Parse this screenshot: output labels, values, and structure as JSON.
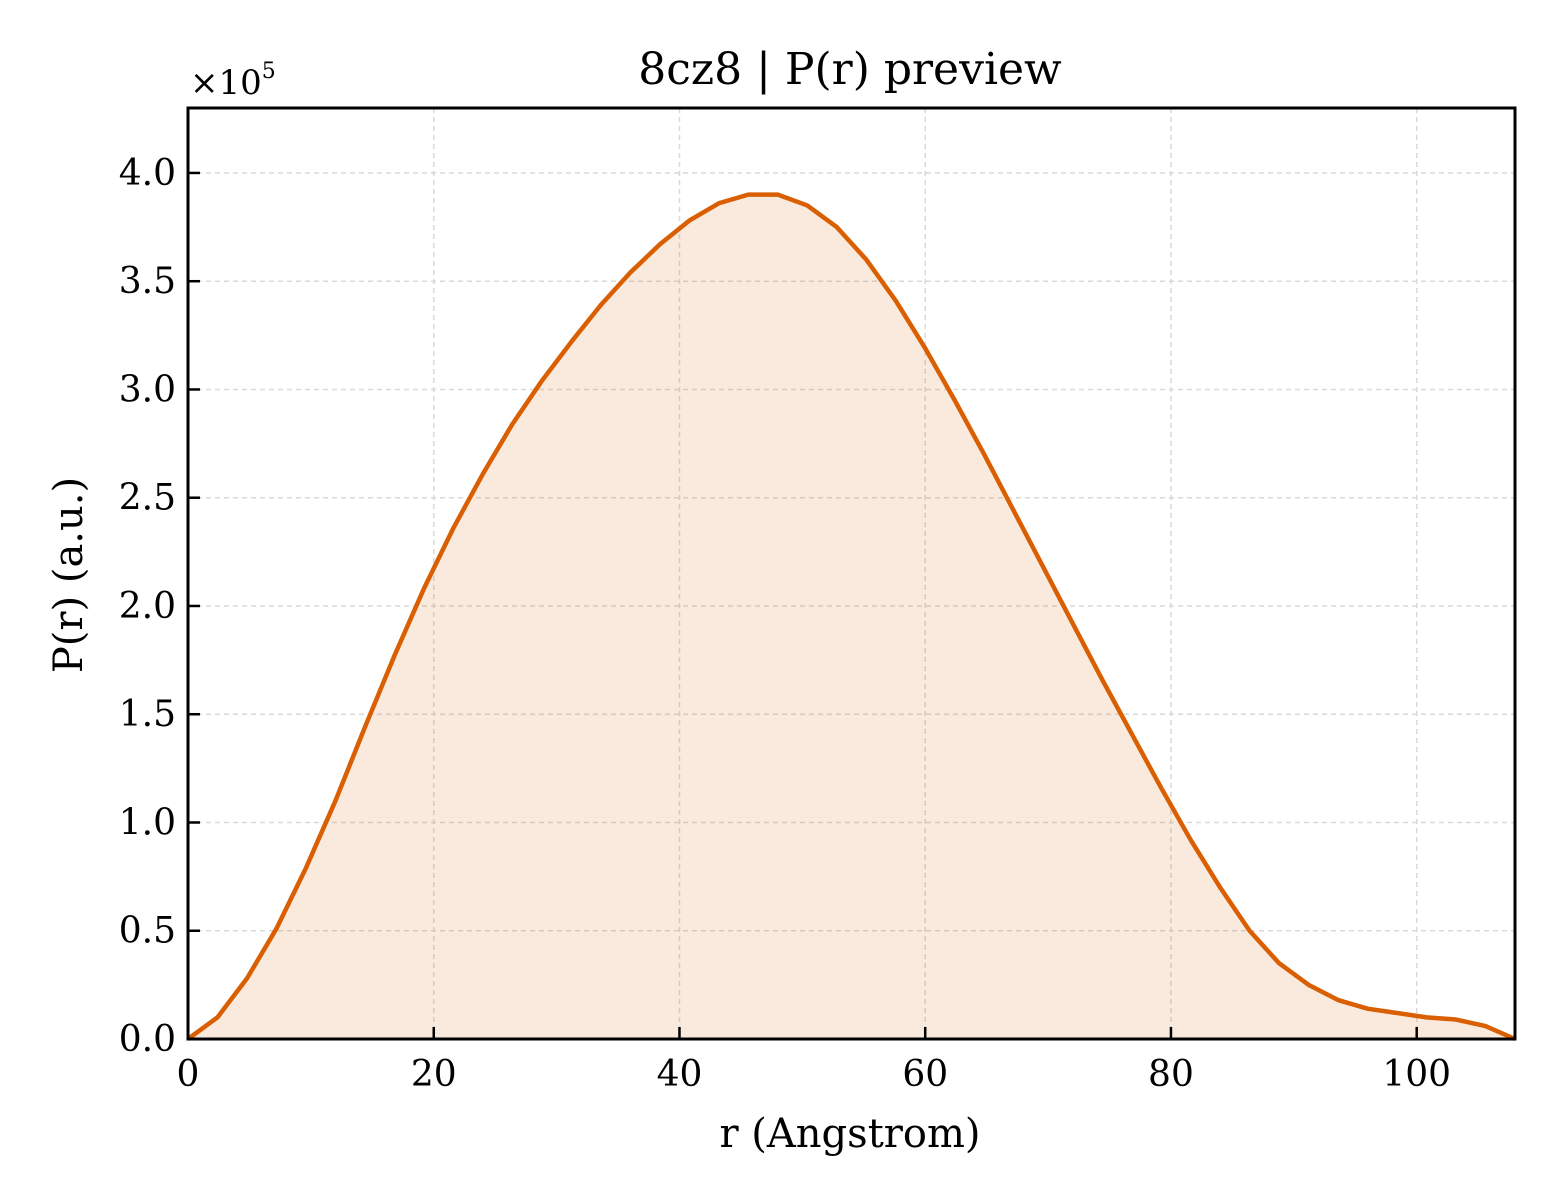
{
  "chart_data": {
    "type": "area",
    "title": "8cz8 | P(r) preview",
    "xlabel": "r (Angstrom)",
    "ylabel": "P(r) (a.u.)",
    "y_multiplier": {
      "prefix": "×10",
      "exponent": "5"
    },
    "xlim": [
      0,
      108
    ],
    "ylim": [
      0,
      4.3
    ],
    "y_unit_scale": 100000,
    "xticks": [
      0,
      20,
      40,
      60,
      80,
      100
    ],
    "xtick_labels": [
      "0",
      "20",
      "40",
      "60",
      "80",
      "100"
    ],
    "yticks": [
      0,
      0.5,
      1.0,
      1.5,
      2.0,
      2.5,
      3.0,
      3.5,
      4.0
    ],
    "ytick_labels": [
      "0.0",
      "0.5",
      "1.0",
      "1.5",
      "2.0",
      "2.5",
      "3.0",
      "3.5",
      "4.0"
    ],
    "grid": true,
    "series": [
      {
        "line_color": "#d95f02",
        "fill_color": "#d95f02",
        "fill_opacity": 0.13,
        "x": [
          0.0,
          2.4,
          4.8,
          7.2,
          9.6,
          12.0,
          14.4,
          16.8,
          19.2,
          21.6,
          24.0,
          26.4,
          28.8,
          31.2,
          33.6,
          36.0,
          38.4,
          40.8,
          43.2,
          45.6,
          48.0,
          50.4,
          52.8,
          55.2,
          57.6,
          60.0,
          62.4,
          64.8,
          67.2,
          69.6,
          72.0,
          74.4,
          76.8,
          79.2,
          81.6,
          84.0,
          86.4,
          88.8,
          91.2,
          93.6,
          96.0,
          98.4,
          100.8,
          103.2,
          105.6,
          108.0
        ],
        "y": [
          0.0,
          0.1,
          0.28,
          0.51,
          0.79,
          1.1,
          1.44,
          1.77,
          2.08,
          2.36,
          2.61,
          2.84,
          3.04,
          3.22,
          3.39,
          3.54,
          3.67,
          3.78,
          3.86,
          3.9,
          3.9,
          3.85,
          3.75,
          3.6,
          3.41,
          3.19,
          2.95,
          2.7,
          2.44,
          2.18,
          1.92,
          1.66,
          1.41,
          1.16,
          0.92,
          0.7,
          0.5,
          0.35,
          0.25,
          0.18,
          0.14,
          0.12,
          0.1,
          0.09,
          0.06,
          0.0
        ]
      }
    ]
  }
}
